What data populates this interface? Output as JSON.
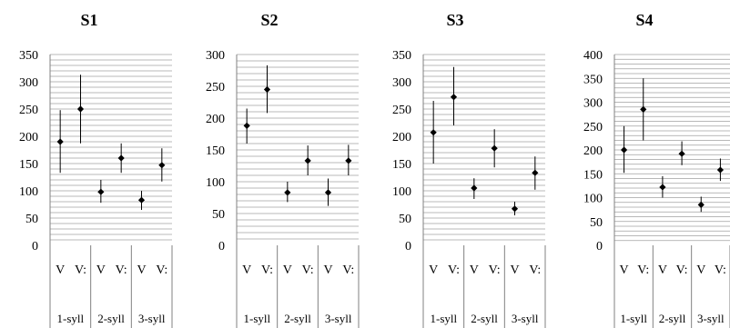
{
  "chart_data": [
    {
      "type": "scatter",
      "title": "S1",
      "ylim": [
        0,
        350
      ],
      "yticks": [
        0,
        50,
        100,
        150,
        200,
        250,
        300,
        350
      ],
      "minor_gridline_step": 10,
      "x_tick_labels": [
        "V",
        "V:",
        "V",
        "V:",
        "V",
        "V:"
      ],
      "groups": [
        "1-syll",
        "2-syll",
        "3-syll"
      ],
      "values": [
        190,
        250,
        98,
        160,
        83,
        147
      ],
      "error_low": [
        133,
        187,
        78,
        133,
        65,
        117
      ],
      "error_high": [
        248,
        313,
        120,
        187,
        100,
        178
      ]
    },
    {
      "type": "scatter",
      "title": "S2",
      "ylim": [
        0,
        300
      ],
      "yticks": [
        0,
        50,
        100,
        150,
        200,
        250,
        300
      ],
      "minor_gridline_step": 10,
      "x_tick_labels": [
        "V",
        "V:",
        "V",
        "V:",
        "V",
        "V:"
      ],
      "groups": [
        "1-syll",
        "2-syll",
        "3-syll"
      ],
      "values": [
        188,
        245,
        83,
        133,
        83,
        133
      ],
      "error_low": [
        160,
        208,
        68,
        110,
        62,
        110
      ],
      "error_high": [
        215,
        283,
        100,
        157,
        105,
        158
      ]
    },
    {
      "type": "scatter",
      "title": "S3",
      "ylim": [
        0,
        350
      ],
      "yticks": [
        0,
        50,
        100,
        150,
        200,
        250,
        300,
        350
      ],
      "minor_gridline_step": 10,
      "x_tick_labels": [
        "V",
        "V:",
        "V",
        "V:",
        "V",
        "V:"
      ],
      "groups": [
        "1-syll",
        "2-syll",
        "3-syll"
      ],
      "values": [
        207,
        272,
        105,
        178,
        67,
        133
      ],
      "error_low": [
        150,
        220,
        85,
        143,
        55,
        102
      ],
      "error_high": [
        265,
        327,
        123,
        213,
        80,
        163
      ]
    },
    {
      "type": "scatter",
      "title": "S4",
      "ylim": [
        0,
        400
      ],
      "yticks": [
        0,
        50,
        100,
        150,
        200,
        250,
        300,
        350,
        400
      ],
      "minor_gridline_step": 10,
      "x_tick_labels": [
        "V",
        "V:",
        "V",
        "V:",
        "V",
        "V:"
      ],
      "groups": [
        "1-syll",
        "2-syll",
        "3-syll"
      ],
      "values": [
        200,
        285,
        122,
        192,
        85,
        158
      ],
      "error_low": [
        152,
        220,
        100,
        168,
        70,
        135
      ],
      "error_high": [
        250,
        350,
        145,
        218,
        102,
        182
      ]
    }
  ],
  "colors": {
    "grid": "#a0a0a0",
    "axis": "#808080",
    "marker": "#000000",
    "text": "#000000"
  }
}
